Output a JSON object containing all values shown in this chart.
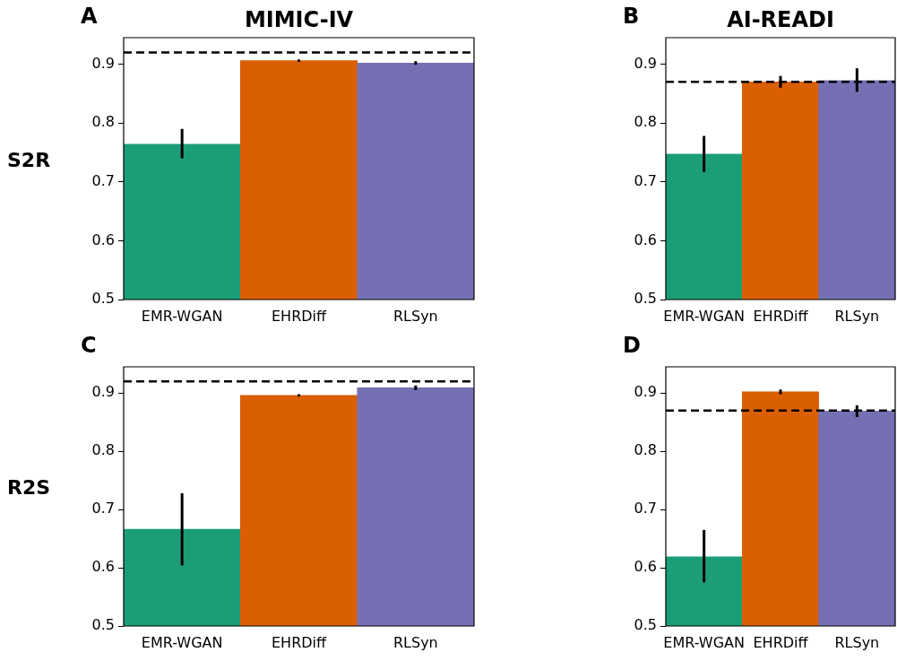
{
  "chart_data": [
    {
      "type": "bar",
      "title": "MIMIC-IV",
      "ylabel": "S2R",
      "annotations": [
        "A"
      ],
      "categories": [
        "EMR-WGAN",
        "EHRDiff",
        "RLSyn"
      ],
      "values": [
        0.764,
        0.906,
        0.902
      ],
      "colors": [
        "#1b9e77",
        "#d95f02",
        "#7570b3"
      ],
      "errors": [
        [
          0.74,
          0.79
        ],
        0.002,
        0.003
      ],
      "ylim": [
        0.5,
        0.945
      ],
      "yticks": [
        0.5,
        0.6,
        0.7,
        0.8,
        0.9
      ],
      "ref_lines": [
        {
          "axis": "y",
          "value": 0.92,
          "color": "#000000",
          "line_style": "dashed"
        }
      ],
      "grid": false,
      "legend": false
    },
    {
      "type": "bar",
      "title": "AI-READI",
      "annotations": [
        "B"
      ],
      "categories": [
        "EMR-WGAN",
        "EHRDiff",
        "RLSyn"
      ],
      "values": [
        0.747,
        0.87,
        0.872
      ],
      "colors": [
        "#1b9e77",
        "#d95f02",
        "#7570b3"
      ],
      "errors": [
        [
          0.717,
          0.778
        ],
        [
          0.86,
          0.88
        ],
        [
          0.853,
          0.893
        ]
      ],
      "ylim": [
        0.5,
        0.945
      ],
      "yticks": [
        0.5,
        0.6,
        0.7,
        0.8,
        0.9
      ],
      "ref_lines": [
        {
          "axis": "y",
          "value": 0.87,
          "color": "#000000",
          "line_style": "dashed"
        }
      ],
      "grid": false,
      "legend": false
    },
    {
      "type": "bar",
      "ylabel": "R2S",
      "annotations": [
        "C"
      ],
      "categories": [
        "EMR-WGAN",
        "EHRDiff",
        "RLSyn"
      ],
      "values": [
        0.666,
        0.896,
        0.909
      ],
      "colors": [
        "#1b9e77",
        "#d95f02",
        "#7570b3"
      ],
      "errors": [
        [
          0.604,
          0.728
        ],
        0.002,
        0.004
      ],
      "ylim": [
        0.5,
        0.945
      ],
      "yticks": [
        0.5,
        0.6,
        0.7,
        0.8,
        0.9
      ],
      "ref_lines": [
        {
          "axis": "y",
          "value": 0.92,
          "color": "#000000",
          "line_style": "dashed"
        }
      ],
      "grid": false,
      "legend": false
    },
    {
      "type": "bar",
      "annotations": [
        "D"
      ],
      "categories": [
        "EMR-WGAN",
        "EHRDiff",
        "RLSyn"
      ],
      "values": [
        0.619,
        0.902,
        0.869
      ],
      "colors": [
        "#1b9e77",
        "#d95f02",
        "#7570b3"
      ],
      "errors": [
        [
          0.575,
          0.665
        ],
        0.004,
        0.01
      ],
      "ylim": [
        0.5,
        0.945
      ],
      "yticks": [
        0.5,
        0.6,
        0.7,
        0.8,
        0.9
      ],
      "ref_lines": [
        {
          "axis": "y",
          "value": 0.87,
          "color": "#000000",
          "line_style": "dashed"
        }
      ],
      "grid": false,
      "legend": false
    }
  ]
}
